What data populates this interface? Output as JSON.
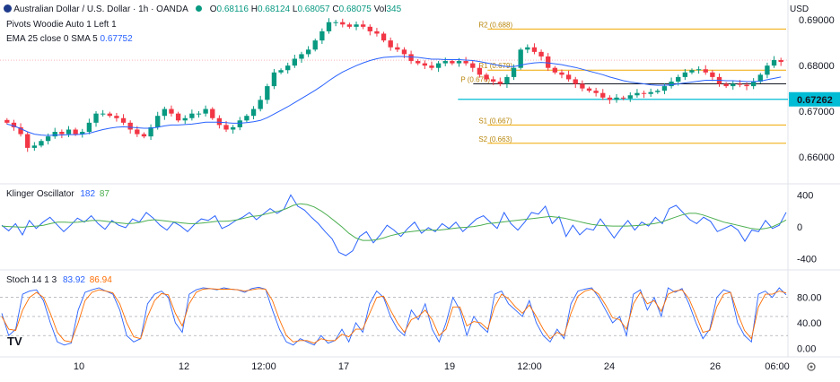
{
  "header": {
    "symbol": "Australian Dollar / U.S. Dollar · 1h · OANDA",
    "ohlc": {
      "o_label": "O",
      "o": "0.68116",
      "h_label": "H",
      "h": "0.68124",
      "l_label": "L",
      "l": "0.68057",
      "c_label": "C",
      "c": "0.68075",
      "vol_label": "Vol",
      "vol": "345"
    },
    "currency": "USD",
    "indicator1": "Pivots Woodie Auto 1 Left 1",
    "indicator2_label": "EMA 25 close 0 SMA 5",
    "indicator2_value": "0.67752"
  },
  "klinger": {
    "label": "Klinger Oscillator",
    "v1": "182",
    "v2": "87"
  },
  "stoch": {
    "label": "Stoch 14 1 3",
    "v1": "83.92",
    "v2": "86.94"
  },
  "watermark": "TV",
  "colors": {
    "up": "#089981",
    "down": "#f23645",
    "ema": "#2962ff",
    "pivot": "#f0a800",
    "support": "#00bcd4",
    "blue_line": "#2962ff",
    "green_line": "#4caf50",
    "stoch_k": "#2962ff",
    "stoch_d": "#ff6d00"
  },
  "chart_data": [
    {
      "type": "candlestick",
      "title": "Australian Dollar / U.S. Dollar · 1h · OANDA",
      "ylim": [
        0.6555,
        0.692
      ],
      "yticks": [
        "0.69000",
        "0.68000",
        "0.67000",
        "0.66000"
      ],
      "ytick_values": [
        0.69,
        0.68,
        0.67,
        0.66
      ],
      "xticks": [
        "10",
        "12",
        "12:00",
        "17",
        "19",
        "12:00",
        "24",
        "26",
        "06:00"
      ],
      "current_price_label": "0.67262",
      "current_price": 0.67262,
      "price_closes": [
        0.6675,
        0.6665,
        0.665,
        0.662,
        0.6625,
        0.6635,
        0.6645,
        0.6655,
        0.665,
        0.666,
        0.665,
        0.6655,
        0.6675,
        0.6695,
        0.6695,
        0.669,
        0.6685,
        0.6675,
        0.666,
        0.665,
        0.6645,
        0.6665,
        0.669,
        0.6705,
        0.6695,
        0.668,
        0.6685,
        0.6695,
        0.6695,
        0.6705,
        0.6685,
        0.667,
        0.666,
        0.6665,
        0.668,
        0.669,
        0.6705,
        0.6725,
        0.6755,
        0.6785,
        0.679,
        0.68,
        0.6815,
        0.6825,
        0.6835,
        0.6855,
        0.6875,
        0.6895,
        0.6895,
        0.689,
        0.6885,
        0.689,
        0.6885,
        0.6875,
        0.687,
        0.6855,
        0.684,
        0.6835,
        0.6825,
        0.681,
        0.6805,
        0.68,
        0.6795,
        0.6805,
        0.681,
        0.6805,
        0.681,
        0.6805,
        0.6795,
        0.678,
        0.677,
        0.6765,
        0.676,
        0.6775,
        0.6795,
        0.6835,
        0.684,
        0.683,
        0.682,
        0.6795,
        0.6785,
        0.678,
        0.677,
        0.676,
        0.675,
        0.6745,
        0.674,
        0.673,
        0.6725,
        0.673,
        0.6728,
        0.6735,
        0.674,
        0.6738,
        0.6742,
        0.6745,
        0.6755,
        0.6765,
        0.6775,
        0.6785,
        0.679,
        0.6792,
        0.6785,
        0.6775,
        0.676,
        0.6755,
        0.676,
        0.6758,
        0.6755,
        0.6765,
        0.678,
        0.68,
        0.6812,
        0.6808
      ],
      "ema_values": [
        0.6672,
        0.6668,
        0.6662,
        0.6655,
        0.665,
        0.6648,
        0.6647,
        0.6648,
        0.6648,
        0.6649,
        0.6649,
        0.665,
        0.6652,
        0.6656,
        0.666,
        0.6663,
        0.6665,
        0.6666,
        0.6665,
        0.6664,
        0.6663,
        0.6663,
        0.6665,
        0.6668,
        0.667,
        0.667,
        0.6671,
        0.6672,
        0.6674,
        0.6676,
        0.6676,
        0.6676,
        0.6675,
        0.6674,
        0.6674,
        0.6675,
        0.6677,
        0.668,
        0.6686,
        0.6694,
        0.6702,
        0.671,
        0.6719,
        0.6728,
        0.6737,
        0.6746,
        0.6756,
        0.6767,
        0.6777,
        0.6786,
        0.6793,
        0.68,
        0.6806,
        0.6811,
        0.6815,
        0.6818,
        0.6819,
        0.682,
        0.682,
        0.6819,
        0.6818,
        0.6816,
        0.6814,
        0.6814,
        0.6813,
        0.6813,
        0.6813,
        0.6812,
        0.6811,
        0.6809,
        0.6806,
        0.6803,
        0.68,
        0.6798,
        0.6798,
        0.6801,
        0.6804,
        0.6806,
        0.6807,
        0.6806,
        0.6804,
        0.6802,
        0.6799,
        0.6796,
        0.6792,
        0.6788,
        0.6784,
        0.678,
        0.6775,
        0.6771,
        0.6767,
        0.6764,
        0.6762,
        0.676,
        0.6758,
        0.6757,
        0.6757,
        0.6758,
        0.676,
        0.6762,
        0.6764,
        0.6766,
        0.6768,
        0.6768,
        0.6768,
        0.6767,
        0.6767,
        0.6766,
        0.6765,
        0.6765,
        0.6766,
        0.6769,
        0.6772,
        0.6775
      ],
      "series": [
        {
          "name": "EMA 25 close 0 SMA 5",
          "value": 0.67752
        },
        {
          "name": "R2",
          "label": "R2 (0.688)",
          "value": 0.688
        },
        {
          "name": "R1",
          "label": "R1 (0.679)",
          "value": 0.679
        },
        {
          "name": "P",
          "label": "P (0.676)",
          "value": 0.676
        },
        {
          "name": "S1",
          "label": "S1 (0.667)",
          "value": 0.667
        },
        {
          "name": "S2",
          "label": "S2 (0.663)",
          "value": 0.663
        }
      ]
    },
    {
      "type": "line",
      "title": "Klinger Oscillator",
      "ylim": [
        -450,
        450
      ],
      "yticks": [
        "400",
        "0",
        "-400"
      ],
      "ytick_values": [
        400,
        0,
        -400
      ],
      "series": [
        {
          "name": "182",
          "values": [
            20,
            -50,
            40,
            -100,
            80,
            -20,
            60,
            120,
            30,
            -60,
            20,
            110,
            60,
            140,
            40,
            -30,
            80,
            20,
            -10,
            100,
            60,
            180,
            110,
            20,
            -40,
            60,
            10,
            -60,
            30,
            100,
            80,
            140,
            -20,
            20,
            80,
            120,
            180,
            90,
            160,
            230,
            170,
            220,
            400,
            260,
            210,
            120,
            40,
            -60,
            -150,
            -320,
            -360,
            -300,
            -120,
            -60,
            -200,
            -100,
            20,
            -40,
            -120,
            -20,
            60,
            -80,
            -10,
            -60,
            40,
            -20,
            60,
            -60,
            20,
            100,
            140,
            60,
            -20,
            180,
            40,
            -40,
            60,
            180,
            160,
            260,
            40,
            130,
            -120,
            20,
            -100,
            -20,
            -40,
            100,
            -20,
            -140,
            -20,
            80,
            -40,
            60,
            10,
            120,
            40,
            230,
            270,
            180,
            90,
            40,
            120,
            70,
            -60,
            -20,
            20,
            -40,
            -180,
            -40,
            -60,
            80,
            -20,
            20,
            182
          ]
        },
        {
          "name": "87",
          "values": [
            10,
            5,
            0,
            -5,
            5,
            10,
            20,
            40,
            60,
            60,
            55,
            60,
            70,
            80,
            80,
            70,
            60,
            50,
            40,
            45,
            60,
            80,
            90,
            80,
            70,
            60,
            50,
            40,
            40,
            50,
            60,
            70,
            70,
            75,
            90,
            110,
            130,
            140,
            160,
            180,
            200,
            230,
            270,
            290,
            280,
            250,
            200,
            140,
            70,
            0,
            -80,
            -140,
            -170,
            -170,
            -160,
            -140,
            -110,
            -90,
            -70,
            -60,
            -50,
            -40,
            -40,
            -40,
            -30,
            -20,
            -10,
            -5,
            5,
            20,
            40,
            50,
            60,
            70,
            80,
            90,
            100,
            110,
            120,
            130,
            120,
            110,
            90,
            70,
            50,
            30,
            20,
            15,
            10,
            10,
            10,
            15,
            20,
            30,
            40,
            60,
            90,
            120,
            150,
            170,
            170,
            150,
            120,
            90,
            60,
            40,
            20,
            0,
            -20,
            -30,
            -20,
            0,
            40,
            87
          ]
        }
      ]
    },
    {
      "type": "line",
      "title": "Stoch 14 1 3",
      "ylim": [
        -8,
        112
      ],
      "yticks": [
        "80.00",
        "40.00",
        "0.00"
      ],
      "ytick_values": [
        80,
        40,
        0
      ],
      "series": [
        {
          "name": "83.92",
          "values": [
            55,
            20,
            30,
            85,
            90,
            92,
            75,
            40,
            10,
            5,
            8,
            60,
            88,
            92,
            95,
            90,
            85,
            60,
            20,
            10,
            15,
            70,
            85,
            90,
            80,
            40,
            25,
            85,
            92,
            95,
            94,
            92,
            95,
            93,
            92,
            88,
            94,
            96,
            93,
            60,
            30,
            10,
            5,
            15,
            10,
            5,
            20,
            8,
            12,
            30,
            10,
            40,
            25,
            70,
            90,
            80,
            50,
            30,
            20,
            60,
            45,
            70,
            30,
            10,
            40,
            80,
            60,
            20,
            50,
            35,
            25,
            85,
            90,
            70,
            60,
            50,
            75,
            40,
            20,
            10,
            30,
            15,
            70,
            90,
            93,
            95,
            80,
            60,
            40,
            50,
            20,
            85,
            92,
            60,
            80,
            50,
            95,
            88,
            94,
            70,
            40,
            15,
            30,
            80,
            92,
            88,
            40,
            20,
            10,
            85,
            90,
            80,
            95,
            84
          ]
        },
        {
          "name": "86.94",
          "values": [
            50,
            30,
            28,
            60,
            80,
            88,
            80,
            55,
            25,
            12,
            10,
            40,
            75,
            88,
            92,
            90,
            87,
            70,
            40,
            18,
            15,
            50,
            75,
            86,
            84,
            55,
            35,
            70,
            88,
            93,
            94,
            93,
            93,
            93,
            92,
            90,
            92,
            94,
            93,
            75,
            45,
            20,
            10,
            12,
            12,
            8,
            15,
            12,
            12,
            22,
            18,
            30,
            30,
            55,
            80,
            82,
            60,
            40,
            25,
            45,
            50,
            60,
            45,
            20,
            30,
            65,
            65,
            35,
            42,
            40,
            30,
            65,
            85,
            78,
            65,
            55,
            68,
            50,
            30,
            15,
            25,
            20,
            55,
            82,
            90,
            93,
            85,
            68,
            48,
            45,
            30,
            70,
            88,
            70,
            75,
            58,
            85,
            90,
            92,
            78,
            52,
            25,
            28,
            65,
            85,
            88,
            55,
            28,
            15,
            65,
            85,
            85,
            90,
            87
          ]
        }
      ]
    }
  ]
}
